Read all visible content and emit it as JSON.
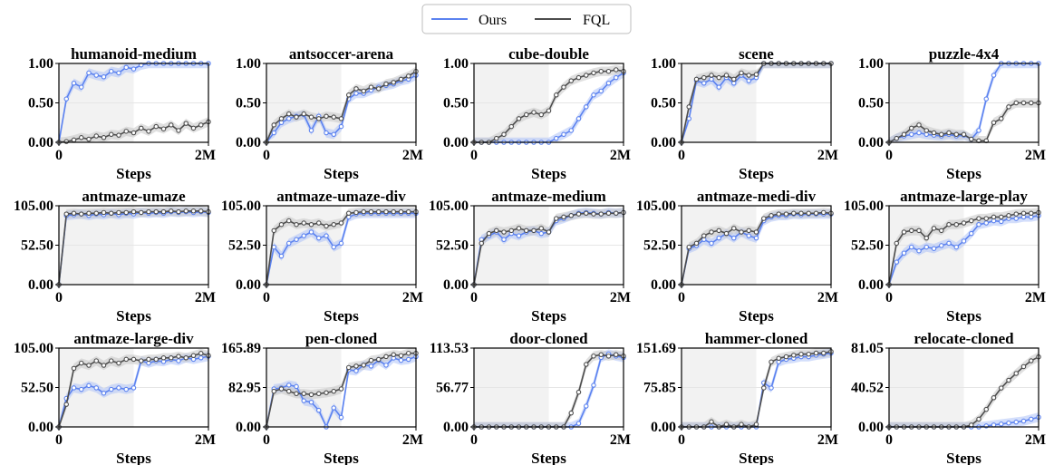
{
  "legend": {
    "items": [
      {
        "label": "Ours",
        "color": "#5b82f0"
      },
      {
        "label": "FQL",
        "color": "#4d4d4d"
      }
    ]
  },
  "colors": {
    "ours": "#5b82f0",
    "fql": "#4d4d4d",
    "ours_band": "#aec3f7",
    "fql_band": "#c6c6c6",
    "offline_shade": "#f2f2f2"
  },
  "chart_data": [
    {
      "type": "line",
      "title": "humanoid-medium",
      "xlabel": "Steps",
      "x_ticks": [
        "0",
        "2M"
      ],
      "y_ticks": [
        "0.00",
        "0.50",
        "1.00"
      ],
      "ylim": [
        0,
        1
      ],
      "offline_end": 0.5,
      "series": [
        {
          "name": "Ours",
          "values": [
            0,
            0.55,
            0.75,
            0.7,
            0.88,
            0.85,
            0.83,
            0.9,
            0.88,
            0.95,
            0.93,
            0.98,
            1,
            1,
            1,
            1,
            1,
            1,
            1,
            1,
            1
          ]
        },
        {
          "name": "FQL",
          "values": [
            0,
            0.01,
            0.03,
            0.06,
            0.04,
            0.08,
            0.06,
            0.1,
            0.09,
            0.14,
            0.12,
            0.18,
            0.14,
            0.2,
            0.17,
            0.22,
            0.15,
            0.24,
            0.18,
            0.22,
            0.26
          ]
        }
      ]
    },
    {
      "type": "line",
      "title": "antsoccer-arena",
      "xlabel": "Steps",
      "x_ticks": [
        "0",
        "2M"
      ],
      "y_ticks": [
        "0.00",
        "0.50",
        "1.00"
      ],
      "ylim": [
        0,
        1
      ],
      "offline_end": 0.5,
      "series": [
        {
          "name": "Ours",
          "values": [
            0,
            0.12,
            0.25,
            0.3,
            0.33,
            0.35,
            0.15,
            0.33,
            0.12,
            0.1,
            0.2,
            0.55,
            0.62,
            0.62,
            0.66,
            0.7,
            0.72,
            0.74,
            0.78,
            0.8,
            0.85
          ]
        },
        {
          "name": "FQL",
          "values": [
            0,
            0.22,
            0.3,
            0.36,
            0.32,
            0.36,
            0.32,
            0.3,
            0.33,
            0.32,
            0.3,
            0.6,
            0.68,
            0.65,
            0.7,
            0.68,
            0.74,
            0.76,
            0.8,
            0.84,
            0.9
          ]
        }
      ]
    },
    {
      "type": "line",
      "title": "cube-double",
      "xlabel": "Steps",
      "x_ticks": [
        "0",
        "2M"
      ],
      "y_ticks": [
        "0.00",
        "0.50",
        "1.00"
      ],
      "ylim": [
        0,
        1
      ],
      "offline_end": 0.5,
      "series": [
        {
          "name": "Ours",
          "values": [
            0,
            0,
            0,
            0,
            0,
            0,
            0,
            0,
            0,
            0,
            0,
            0.05,
            0.1,
            0.15,
            0.3,
            0.45,
            0.6,
            0.65,
            0.75,
            0.82,
            0.88
          ]
        },
        {
          "name": "FQL",
          "values": [
            0,
            0,
            0,
            0.05,
            0.1,
            0.2,
            0.3,
            0.35,
            0.38,
            0.35,
            0.4,
            0.6,
            0.7,
            0.78,
            0.82,
            0.85,
            0.88,
            0.9,
            0.9,
            0.92,
            0.9
          ]
        }
      ]
    },
    {
      "type": "line",
      "title": "scene",
      "xlabel": "Steps",
      "x_ticks": [
        "0",
        "2M"
      ],
      "y_ticks": [
        "0.00",
        "0.50",
        "1.00"
      ],
      "ylim": [
        0,
        1
      ],
      "offline_end": 0.5,
      "series": [
        {
          "name": "Ours",
          "values": [
            0,
            0.3,
            0.78,
            0.75,
            0.8,
            0.7,
            0.82,
            0.75,
            0.85,
            0.78,
            0.82,
            1,
            1,
            1,
            1,
            1,
            1,
            1,
            1,
            1,
            1
          ]
        },
        {
          "name": "FQL",
          "values": [
            0,
            0.45,
            0.8,
            0.82,
            0.85,
            0.82,
            0.85,
            0.8,
            0.88,
            0.85,
            0.86,
            1,
            1,
            1,
            1,
            1,
            1,
            1,
            1,
            1,
            1
          ]
        }
      ]
    },
    {
      "type": "line",
      "title": "puzzle-4x4",
      "xlabel": "Steps",
      "x_ticks": [
        "0",
        "2M"
      ],
      "y_ticks": [
        "0.00",
        "0.50",
        "1.00"
      ],
      "ylim": [
        0,
        1
      ],
      "offline_end": 0.5,
      "series": [
        {
          "name": "Ours",
          "values": [
            0,
            0.05,
            0.08,
            0.1,
            0.12,
            0.1,
            0.09,
            0.08,
            0.1,
            0.08,
            0.09,
            0.04,
            0.15,
            0.55,
            0.85,
            1,
            1,
            1,
            1,
            1,
            1
          ]
        },
        {
          "name": "FQL",
          "values": [
            0,
            0.05,
            0.1,
            0.18,
            0.22,
            0.15,
            0.12,
            0.1,
            0.12,
            0.1,
            0.1,
            0.04,
            0.02,
            0.02,
            0.25,
            0.3,
            0.45,
            0.5,
            0.5,
            0.5,
            0.5
          ]
        }
      ]
    },
    {
      "type": "line",
      "title": "antmaze-umaze",
      "xlabel": "Steps",
      "x_ticks": [
        "0",
        "2M"
      ],
      "y_ticks": [
        "0.00",
        "52.50",
        "105.00"
      ],
      "ylim": [
        0,
        105
      ],
      "offline_end": 0.5,
      "series": [
        {
          "name": "Ours",
          "values": [
            0,
            92,
            93,
            94,
            92,
            94,
            93,
            95,
            93,
            95,
            94,
            96,
            95,
            96,
            95,
            97,
            96,
            97,
            96,
            97,
            96
          ]
        },
        {
          "name": "FQL",
          "values": [
            0,
            94,
            95,
            94,
            95,
            95,
            96,
            95,
            96,
            96,
            97,
            96,
            97,
            97,
            97,
            98,
            97,
            98,
            98,
            98,
            97
          ]
        }
      ]
    },
    {
      "type": "line",
      "title": "antmaze-umaze-div",
      "xlabel": "Steps",
      "x_ticks": [
        "0",
        "2M"
      ],
      "y_ticks": [
        "0.00",
        "52.50",
        "105.00"
      ],
      "ylim": [
        0,
        105
      ],
      "offline_end": 0.5,
      "series": [
        {
          "name": "Ours",
          "values": [
            0,
            50,
            38,
            55,
            60,
            65,
            70,
            62,
            65,
            50,
            55,
            90,
            94,
            95,
            95,
            95,
            95,
            95,
            95,
            95,
            95
          ]
        },
        {
          "name": "FQL",
          "values": [
            0,
            72,
            80,
            85,
            80,
            82,
            80,
            82,
            78,
            80,
            82,
            95,
            96,
            97,
            97,
            97,
            97,
            97,
            97,
            97,
            97
          ]
        }
      ]
    },
    {
      "type": "line",
      "title": "antmaze-medium",
      "xlabel": "Steps",
      "x_ticks": [
        "0",
        "2M"
      ],
      "y_ticks": [
        "0.00",
        "52.50",
        "105.00"
      ],
      "ylim": [
        0,
        105
      ],
      "offline_end": 0.5,
      "series": [
        {
          "name": "Ours",
          "values": [
            0,
            60,
            65,
            70,
            60,
            68,
            65,
            70,
            72,
            68,
            70,
            85,
            88,
            92,
            95,
            96,
            95,
            94,
            96,
            95,
            96
          ]
        },
        {
          "name": "FQL",
          "values": [
            0,
            55,
            68,
            72,
            70,
            72,
            75,
            72,
            72,
            75,
            70,
            88,
            90,
            92,
            94,
            95,
            94,
            94,
            95,
            95,
            96
          ]
        }
      ]
    },
    {
      "type": "line",
      "title": "antmaze-medi-div",
      "xlabel": "Steps",
      "x_ticks": [
        "0",
        "2M"
      ],
      "y_ticks": [
        "0.00",
        "52.50",
        "105.00"
      ],
      "ylim": [
        0,
        105
      ],
      "offline_end": 0.5,
      "series": [
        {
          "name": "Ours",
          "values": [
            0,
            48,
            52,
            60,
            55,
            62,
            68,
            62,
            70,
            65,
            62,
            85,
            90,
            92,
            92,
            94,
            93,
            94,
            94,
            94,
            94
          ]
        },
        {
          "name": "FQL",
          "values": [
            0,
            50,
            55,
            65,
            70,
            72,
            68,
            75,
            70,
            72,
            70,
            88,
            92,
            94,
            94,
            95,
            95,
            95,
            95,
            96,
            95
          ]
        }
      ]
    },
    {
      "type": "line",
      "title": "antmaze-large-play",
      "xlabel": "Steps",
      "x_ticks": [
        "0",
        "2M"
      ],
      "y_ticks": [
        "0.00",
        "52.50",
        "105.00"
      ],
      "ylim": [
        0,
        105
      ],
      "offline_end": 0.5,
      "series": [
        {
          "name": "Ours",
          "values": [
            0,
            30,
            42,
            50,
            45,
            50,
            48,
            52,
            55,
            50,
            58,
            68,
            80,
            82,
            85,
            84,
            88,
            88,
            90,
            90,
            92
          ]
        },
        {
          "name": "FQL",
          "values": [
            0,
            55,
            70,
            72,
            72,
            62,
            75,
            72,
            80,
            80,
            82,
            85,
            88,
            88,
            90,
            90,
            92,
            94,
            95,
            95,
            96
          ]
        }
      ]
    },
    {
      "type": "line",
      "title": "antmaze-large-div",
      "xlabel": "Steps",
      "x_ticks": [
        "0",
        "2M"
      ],
      "y_ticks": [
        "0.00",
        "52.50",
        "105.00"
      ],
      "ylim": [
        0,
        105
      ],
      "offline_end": 0.5,
      "series": [
        {
          "name": "Ours",
          "values": [
            0,
            38,
            52,
            50,
            55,
            52,
            45,
            50,
            52,
            50,
            52,
            88,
            85,
            88,
            87,
            90,
            88,
            92,
            90,
            92,
            94
          ]
        },
        {
          "name": "FQL",
          "values": [
            0,
            30,
            78,
            85,
            82,
            88,
            82,
            88,
            85,
            90,
            90,
            88,
            90,
            90,
            92,
            92,
            94,
            92,
            95,
            98,
            95
          ]
        }
      ]
    },
    {
      "type": "line",
      "title": "pen-cloned",
      "xlabel": "Steps",
      "x_ticks": [
        "0",
        "2M"
      ],
      "y_ticks": [
        "0.00",
        "82.95",
        "165.89"
      ],
      "ylim": [
        0,
        165.89
      ],
      "offline_end": 0.5,
      "series": [
        {
          "name": "Ours",
          "values": [
            0,
            80,
            82,
            88,
            85,
            55,
            52,
            35,
            0,
            40,
            20,
            120,
            118,
            130,
            128,
            140,
            130,
            145,
            140,
            142,
            148
          ]
        },
        {
          "name": "FQL",
          "values": [
            0,
            75,
            80,
            75,
            70,
            70,
            68,
            70,
            72,
            75,
            80,
            125,
            128,
            130,
            140,
            142,
            148,
            152,
            150,
            155,
            155
          ]
        }
      ]
    },
    {
      "type": "line",
      "title": "door-cloned",
      "xlabel": "Steps",
      "x_ticks": [
        "0",
        "2M"
      ],
      "y_ticks": [
        "0.00",
        "56.77",
        "113.53"
      ],
      "ylim": [
        0,
        113.53
      ],
      "offline_end": 0.5,
      "series": [
        {
          "name": "Ours",
          "values": [
            0,
            0,
            0,
            0,
            0,
            0,
            0,
            0,
            0,
            0,
            0,
            0,
            0,
            0,
            5,
            30,
            60,
            100,
            105,
            102,
            100
          ]
        },
        {
          "name": "FQL",
          "values": [
            0,
            0,
            0,
            0,
            0,
            0,
            0,
            0,
            0,
            0,
            0,
            0,
            0,
            20,
            50,
            90,
            102,
            104,
            102,
            104,
            102
          ]
        }
      ]
    },
    {
      "type": "line",
      "title": "hammer-cloned",
      "xlabel": "Steps",
      "x_ticks": [
        "0",
        "2M"
      ],
      "y_ticks": [
        "0.00",
        "75.85",
        "151.69"
      ],
      "ylim": [
        0,
        151.69
      ],
      "offline_end": 0.5,
      "series": [
        {
          "name": "Ours",
          "values": [
            0,
            0,
            0,
            0,
            0,
            0,
            0,
            0,
            0,
            0,
            0,
            85,
            75,
            125,
            130,
            132,
            135,
            135,
            138,
            140,
            142
          ]
        },
        {
          "name": "FQL",
          "values": [
            0,
            0,
            0,
            0,
            10,
            0,
            5,
            0,
            5,
            0,
            5,
            75,
            125,
            132,
            135,
            138,
            140,
            140,
            142,
            142,
            145
          ]
        }
      ]
    },
    {
      "type": "line",
      "title": "relocate-cloned",
      "xlabel": "Steps",
      "x_ticks": [
        "0",
        "2M"
      ],
      "y_ticks": [
        "0.00",
        "40.52",
        "81.05"
      ],
      "ylim": [
        0,
        81.05
      ],
      "offline_end": 0.5,
      "series": [
        {
          "name": "Ours",
          "values": [
            0,
            0,
            0,
            0,
            0,
            0,
            0,
            0,
            0,
            0,
            0,
            0,
            0,
            1,
            2,
            3,
            4,
            5,
            6,
            8,
            10
          ]
        },
        {
          "name": "FQL",
          "values": [
            0,
            0,
            0,
            0,
            0,
            0,
            0,
            0,
            0,
            0,
            0,
            2,
            8,
            18,
            30,
            40,
            48,
            55,
            62,
            68,
            72
          ]
        }
      ]
    }
  ]
}
